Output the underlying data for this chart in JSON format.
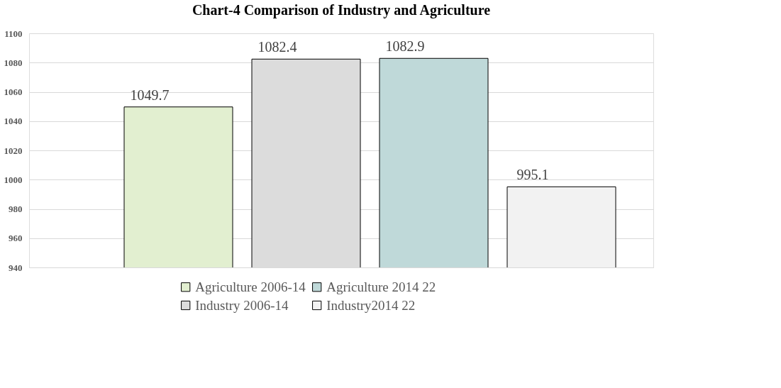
{
  "chart_data": {
    "type": "bar",
    "title": "Chart-4 Comparison of Industry and Agriculture",
    "categories": [
      null
    ],
    "series": [
      {
        "name": "Agriculture 2006-14",
        "color": "#e2efd0",
        "values": [
          1049.7
        ]
      },
      {
        "name": "Industry 2006-14",
        "color": "#dcdcdc",
        "values": [
          1082.4
        ]
      },
      {
        "name": "Agriculture 2014 22",
        "color": "#bfd9d9",
        "values": [
          1082.9
        ]
      },
      {
        "name": "Industry2014 22",
        "color": "#f2f2f2",
        "values": [
          995.1
        ]
      }
    ],
    "ylim": [
      940,
      1100
    ],
    "yticks": [
      940,
      960,
      980,
      1000,
      1020,
      1040,
      1060,
      1080,
      1100
    ],
    "grid": "y",
    "legend": "bottom",
    "data_labels": true
  }
}
